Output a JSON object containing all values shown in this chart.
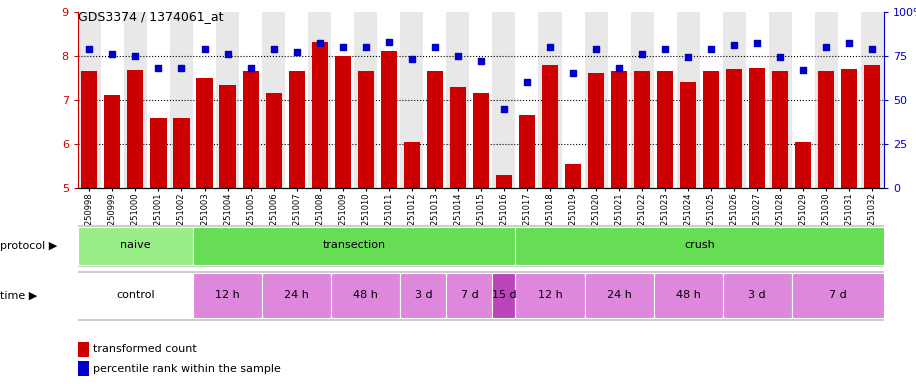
{
  "title": "GDS3374 / 1374061_at",
  "samples": [
    "GSM250998",
    "GSM250999",
    "GSM251000",
    "GSM251001",
    "GSM251002",
    "GSM251003",
    "GSM251004",
    "GSM251005",
    "GSM251006",
    "GSM251007",
    "GSM251008",
    "GSM251009",
    "GSM251010",
    "GSM251011",
    "GSM251012",
    "GSM251013",
    "GSM251014",
    "GSM251015",
    "GSM251016",
    "GSM251017",
    "GSM251018",
    "GSM251019",
    "GSM251020",
    "GSM251021",
    "GSM251022",
    "GSM251023",
    "GSM251024",
    "GSM251025",
    "GSM251026",
    "GSM251027",
    "GSM251028",
    "GSM251029",
    "GSM251030",
    "GSM251031",
    "GSM251032"
  ],
  "bar_values": [
    7.65,
    7.12,
    7.68,
    6.58,
    6.6,
    7.5,
    7.33,
    7.65,
    7.15,
    7.65,
    8.32,
    8.0,
    7.65,
    8.1,
    6.05,
    7.65,
    7.3,
    7.15,
    5.3,
    6.65,
    7.8,
    5.55,
    7.6,
    7.65,
    7.65,
    7.65,
    7.4,
    7.65,
    7.7,
    7.72,
    7.65,
    6.05,
    7.65,
    7.7,
    7.8
  ],
  "dot_values": [
    79,
    76,
    75,
    68,
    68,
    79,
    76,
    68,
    79,
    77,
    82,
    80,
    80,
    83,
    73,
    80,
    75,
    72,
    45,
    60,
    80,
    65,
    79,
    68,
    76,
    79,
    74,
    79,
    81,
    82,
    74,
    67,
    80,
    82,
    79
  ],
  "ylim_left": [
    5,
    9
  ],
  "ylim_right": [
    0,
    100
  ],
  "yticks_left": [
    5,
    6,
    7,
    8,
    9
  ],
  "yticks_right": [
    0,
    25,
    50,
    75,
    100
  ],
  "bar_color": "#cc0000",
  "dot_color": "#0000cc",
  "bg_color": "#ffffff",
  "col_alt_color": "#e8e8e8",
  "protocol_groups": [
    {
      "label": "naive",
      "start": 0,
      "end": 4,
      "color": "#99ee88"
    },
    {
      "label": "transection",
      "start": 5,
      "end": 18,
      "color": "#66dd55"
    },
    {
      "label": "crush",
      "start": 19,
      "end": 34,
      "color": "#66dd55"
    }
  ],
  "time_groups": [
    {
      "label": "control",
      "start": 0,
      "end": 4,
      "color": "#ffffff"
    },
    {
      "label": "12 h",
      "start": 5,
      "end": 7,
      "color": "#dd88dd"
    },
    {
      "label": "24 h",
      "start": 8,
      "end": 10,
      "color": "#dd88dd"
    },
    {
      "label": "48 h",
      "start": 11,
      "end": 13,
      "color": "#dd88dd"
    },
    {
      "label": "3 d",
      "start": 14,
      "end": 15,
      "color": "#dd88dd"
    },
    {
      "label": "7 d",
      "start": 16,
      "end": 17,
      "color": "#dd88dd"
    },
    {
      "label": "15 d",
      "start": 18,
      "end": 18,
      "color": "#bb44bb"
    },
    {
      "label": "12 h",
      "start": 19,
      "end": 21,
      "color": "#dd88dd"
    },
    {
      "label": "24 h",
      "start": 22,
      "end": 24,
      "color": "#dd88dd"
    },
    {
      "label": "48 h",
      "start": 25,
      "end": 27,
      "color": "#dd88dd"
    },
    {
      "label": "3 d",
      "start": 28,
      "end": 30,
      "color": "#dd88dd"
    },
    {
      "label": "7 d",
      "start": 31,
      "end": 34,
      "color": "#dd88dd"
    }
  ]
}
